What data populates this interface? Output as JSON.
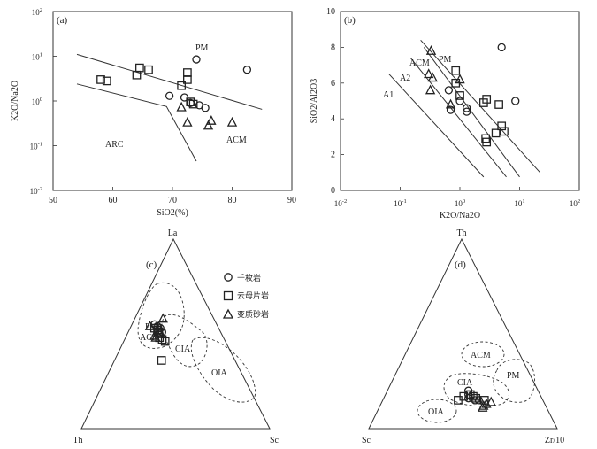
{
  "panel_a": {
    "label": "(a)",
    "xlabel": "SiO2(%)",
    "ylabel": "K2O/Na2O",
    "x_ticks": [
      "50",
      "60",
      "70",
      "80",
      "90"
    ],
    "y_ticks": [
      {
        "base": "10",
        "exp": "2"
      },
      {
        "base": "10",
        "exp": "1"
      },
      {
        "base": "10",
        "exp": "0"
      },
      {
        "base": "10",
        "exp": "-1"
      },
      {
        "base": "10",
        "exp": "-2"
      }
    ],
    "field_labels": [
      "PM",
      "ARC",
      "ACM"
    ]
  },
  "panel_b": {
    "label": "(b)",
    "xlabel": "K2O/Na2O",
    "ylabel": "SiO2/Al2O3",
    "y_ticks": [
      "0",
      "2",
      "4",
      "6",
      "8",
      "10"
    ],
    "x_ticks": [
      {
        "base": "10",
        "exp": "-2"
      },
      {
        "base": "10",
        "exp": "-1"
      },
      {
        "base": "10",
        "exp": "0"
      },
      {
        "base": "10",
        "exp": "1"
      },
      {
        "base": "10",
        "exp": "2"
      }
    ],
    "field_labels": [
      "PM",
      "ACM",
      "A2",
      "A1"
    ]
  },
  "panel_c": {
    "label": "(c)",
    "apex_top": "La",
    "apex_left": "Th",
    "apex_right": "Sc",
    "field_labels": [
      "PM",
      "ACM",
      "CIA",
      "OIA"
    ]
  },
  "panel_d": {
    "label": "(d)",
    "apex_top": "Th",
    "apex_left": "Sc",
    "apex_right": "Zr/10",
    "field_labels": [
      "ACM",
      "PM",
      "CIA",
      "OIA"
    ]
  },
  "legend": {
    "items": [
      {
        "symbol": "circle",
        "label": "千枚岩"
      },
      {
        "symbol": "square",
        "label": "云母片岩"
      },
      {
        "symbol": "triangle",
        "label": "变质砂岩"
      }
    ]
  },
  "chart_data": [
    {
      "type": "scatter",
      "panel": "(a)",
      "xlabel": "SiO2(%)",
      "ylabel": "K2O/Na2O",
      "xlim": [
        50,
        90
      ],
      "ylim": [
        0.01,
        100
      ],
      "yscale": "log",
      "series": [
        {
          "name": "千枚岩",
          "marker": "circle",
          "points": [
            [
              74,
              8.5
            ],
            [
              82.5,
              5.0
            ],
            [
              69.5,
              1.3
            ],
            [
              72,
              1.2
            ],
            [
              73,
              0.9
            ],
            [
              74.5,
              0.8
            ],
            [
              75.5,
              0.7
            ]
          ]
        },
        {
          "name": "云母片岩",
          "marker": "square",
          "points": [
            [
              58,
              3.0
            ],
            [
              59,
              2.8
            ],
            [
              64.5,
              5.5
            ],
            [
              64,
              3.8
            ],
            [
              66,
              5.0
            ],
            [
              72.5,
              4.3
            ],
            [
              72.5,
              3.0
            ],
            [
              71.5,
              2.2
            ],
            [
              73,
              0.95
            ],
            [
              73.5,
              0.85
            ]
          ]
        },
        {
          "name": "变质砂岩",
          "marker": "triangle",
          "points": [
            [
              71.5,
              0.72
            ],
            [
              72.5,
              0.33
            ],
            [
              76.5,
              0.36
            ],
            [
              76,
              0.28
            ],
            [
              80,
              0.33
            ]
          ]
        }
      ],
      "boundaries": [
        {
          "points": [
            [
              54,
              11
            ],
            [
              85,
              0.65
            ]
          ]
        },
        {
          "points": [
            [
              54,
              2.4
            ],
            [
              69,
              0.75
            ],
            [
              74,
              0.045
            ]
          ]
        }
      ]
    },
    {
      "type": "scatter",
      "panel": "(b)",
      "xlabel": "K2O/Na2O",
      "ylabel": "SiO2/Al2O3",
      "xlim": [
        0.01,
        100
      ],
      "xscale": "log",
      "ylim": [
        0,
        10
      ],
      "series": [
        {
          "name": "千枚岩",
          "marker": "circle",
          "points": [
            [
              5,
              8.0
            ],
            [
              0.65,
              5.6
            ],
            [
              1.0,
              5.0
            ],
            [
              1.3,
              4.6
            ],
            [
              0.7,
              4.5
            ],
            [
              1.3,
              4.4
            ],
            [
              8.5,
              5.0
            ]
          ]
        },
        {
          "name": "云母片岩",
          "marker": "square",
          "points": [
            [
              0.85,
              6.7
            ],
            [
              0.85,
              6.0
            ],
            [
              1.0,
              5.3
            ],
            [
              2.5,
              4.9
            ],
            [
              2.8,
              5.1
            ],
            [
              4.5,
              4.8
            ],
            [
              5,
              3.6
            ],
            [
              5.5,
              3.3
            ],
            [
              4.0,
              3.2
            ],
            [
              2.7,
              2.9
            ],
            [
              2.8,
              2.7
            ]
          ]
        },
        {
          "name": "变质砂岩",
          "marker": "triangle",
          "points": [
            [
              0.33,
              7.8
            ],
            [
              0.3,
              6.5
            ],
            [
              0.35,
              6.3
            ],
            [
              0.32,
              5.6
            ],
            [
              0.7,
              4.8
            ],
            [
              1.0,
              6.2
            ]
          ]
        }
      ],
      "boundaries": [
        {
          "name": "A1",
          "points": [
            [
              0.065,
              6.5
            ],
            [
              2.5,
              0.75
            ]
          ]
        },
        {
          "name": "A2",
          "points": [
            [
              0.15,
              7.4
            ],
            [
              6,
              0.75
            ]
          ]
        },
        {
          "name": "ACM",
          "points": [
            [
              0.25,
              8.0
            ],
            [
              10,
              0.75
            ]
          ]
        },
        {
          "name": "PM",
          "points": [
            [
              0.22,
              8.4
            ],
            [
              22,
              1.0
            ]
          ]
        }
      ]
    },
    {
      "type": "scatter",
      "panel": "(c)",
      "ternary": true,
      "apexes": [
        "La",
        "Th",
        "Sc"
      ],
      "series": [
        {
          "name": "千枚岩",
          "marker": "circle",
          "points": [
            {
              "La": 0.55,
              "Th": 0.33,
              "Sc": 0.12
            },
            {
              "La": 0.54,
              "Th": 0.32,
              "Sc": 0.14
            },
            {
              "La": 0.53,
              "Th": 0.31,
              "Sc": 0.16
            },
            {
              "La": 0.52,
              "Th": 0.32,
              "Sc": 0.16
            },
            {
              "La": 0.51,
              "Th": 0.31,
              "Sc": 0.18
            },
            {
              "La": 0.5,
              "Th": 0.33,
              "Sc": 0.17
            }
          ]
        },
        {
          "name": "云母片岩",
          "marker": "square",
          "points": [
            {
              "La": 0.53,
              "Th": 0.34,
              "Sc": 0.13
            },
            {
              "La": 0.52,
              "Th": 0.33,
              "Sc": 0.15
            },
            {
              "La": 0.51,
              "Th": 0.33,
              "Sc": 0.16
            },
            {
              "La": 0.5,
              "Th": 0.32,
              "Sc": 0.18
            },
            {
              "La": 0.48,
              "Th": 0.34,
              "Sc": 0.18
            },
            {
              "La": 0.47,
              "Th": 0.33,
              "Sc": 0.2
            },
            {
              "La": 0.46,
              "Th": 0.32,
              "Sc": 0.22
            },
            {
              "La": 0.36,
              "Th": 0.39,
              "Sc": 0.25
            }
          ]
        },
        {
          "name": "变质砂岩",
          "marker": "triangle",
          "points": [
            {
              "La": 0.58,
              "Th": 0.27,
              "Sc": 0.15
            },
            {
              "La": 0.54,
              "Th": 0.36,
              "Sc": 0.1
            },
            {
              "La": 0.49,
              "Th": 0.36,
              "Sc": 0.15
            },
            {
              "La": 0.48,
              "Th": 0.36,
              "Sc": 0.16
            }
          ]
        }
      ]
    },
    {
      "type": "scatter",
      "panel": "(d)",
      "ternary": true,
      "apexes": [
        "Th",
        "Sc",
        "Zr/10"
      ],
      "series": [
        {
          "name": "千枚岩",
          "marker": "circle",
          "points": [
            {
              "Th": 0.2,
              "Sc": 0.37,
              "Zr/10": 0.43
            },
            {
              "Th": 0.18,
              "Sc": 0.38,
              "Zr/10": 0.44
            },
            {
              "Th": 0.16,
              "Sc": 0.39,
              "Zr/10": 0.45
            },
            {
              "Th": 0.15,
              "Sc": 0.36,
              "Zr/10": 0.49
            },
            {
              "Th": 0.15,
              "Sc": 0.34,
              "Zr/10": 0.51
            }
          ]
        },
        {
          "name": "云母片岩",
          "marker": "square",
          "points": [
            {
              "Th": 0.18,
              "Sc": 0.37,
              "Zr/10": 0.45
            },
            {
              "Th": 0.17,
              "Sc": 0.36,
              "Zr/10": 0.47
            },
            {
              "Th": 0.16,
              "Sc": 0.35,
              "Zr/10": 0.49
            },
            {
              "Th": 0.15,
              "Sc": 0.45,
              "Zr/10": 0.4
            },
            {
              "Th": 0.17,
              "Sc": 0.41,
              "Zr/10": 0.42
            },
            {
              "Th": 0.15,
              "Sc": 0.31,
              "Zr/10": 0.54
            }
          ]
        },
        {
          "name": "变质砂岩",
          "marker": "triangle",
          "points": [
            {
              "Th": 0.12,
              "Sc": 0.33,
              "Zr/10": 0.55
            },
            {
              "Th": 0.13,
              "Sc": 0.31,
              "Zr/10": 0.56
            },
            {
              "Th": 0.14,
              "Sc": 0.28,
              "Zr/10": 0.58
            },
            {
              "Th": 0.11,
              "Sc": 0.34,
              "Zr/10": 0.55
            }
          ]
        }
      ]
    }
  ]
}
